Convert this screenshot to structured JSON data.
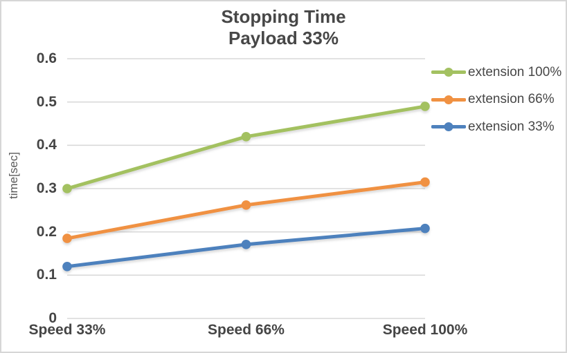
{
  "chart_data": {
    "type": "line",
    "title": "Stopping Time",
    "subtitle": "Payload 33%",
    "categories": [
      "Speed 33%",
      "Speed 66%",
      "Speed 100%"
    ],
    "series": [
      {
        "name": "extension 100%",
        "color": "#a3c161",
        "values": [
          0.3,
          0.42,
          0.49
        ]
      },
      {
        "name": "extension 66%",
        "color": "#f09142",
        "values": [
          0.185,
          0.262,
          0.315
        ]
      },
      {
        "name": "extension 33%",
        "color": "#4e81bd",
        "values": [
          0.12,
          0.171,
          0.208
        ]
      }
    ],
    "xlabel": "",
    "ylabel": "time[sec]",
    "ylim": [
      0,
      0.6
    ],
    "ytick_step": 0.1,
    "yticks": [
      "0.6",
      "0.5",
      "0.4",
      "0.3",
      "0.2",
      "0.1",
      "0"
    ],
    "grid": "horizontal",
    "legend_position": "right",
    "gridline_color": "#d9d9d9",
    "text_color": "#454545",
    "border_color": "#d6d6d6",
    "background": "#ffffff"
  }
}
